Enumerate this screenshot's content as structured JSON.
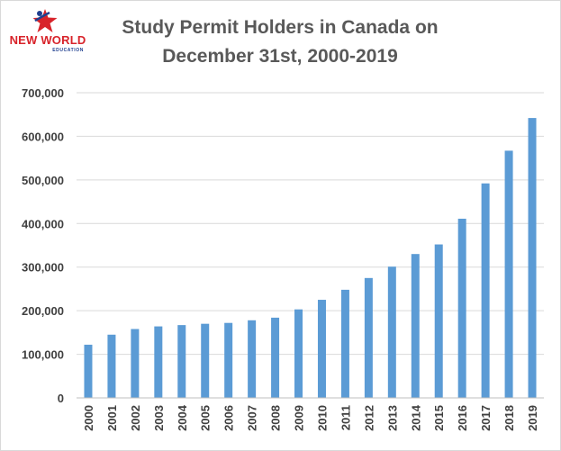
{
  "logo": {
    "name": "NEW WORLD",
    "sub": "EDUCATION",
    "colors": {
      "red": "#d8232a",
      "blue": "#1f3f8f"
    }
  },
  "title_lines": [
    "Study Permit Holders in Canada on",
    "December 31st, 2000-2019"
  ],
  "chart_data": {
    "type": "bar",
    "title": "Study Permit Holders in Canada on December 31st, 2000-2019",
    "xlabel": "",
    "ylabel": "",
    "categories": [
      "2000",
      "2001",
      "2002",
      "2003",
      "2004",
      "2005",
      "2006",
      "2007",
      "2008",
      "2009",
      "2010",
      "2011",
      "2012",
      "2013",
      "2014",
      "2015",
      "2016",
      "2017",
      "2018",
      "2019"
    ],
    "values": [
      122000,
      145000,
      158000,
      164000,
      167000,
      170000,
      172000,
      178000,
      184000,
      203000,
      225000,
      248000,
      275000,
      301000,
      330000,
      352000,
      411000,
      492000,
      567000,
      642000
    ],
    "ylim": [
      0,
      700000
    ],
    "yticks": [
      "0",
      "100,000",
      "200,000",
      "300,000",
      "400,000",
      "500,000",
      "600,000",
      "700,000"
    ],
    "grid": true,
    "legend": "none",
    "bar_color": "#5b9bd5",
    "grid_color": "#d9d9d9"
  }
}
